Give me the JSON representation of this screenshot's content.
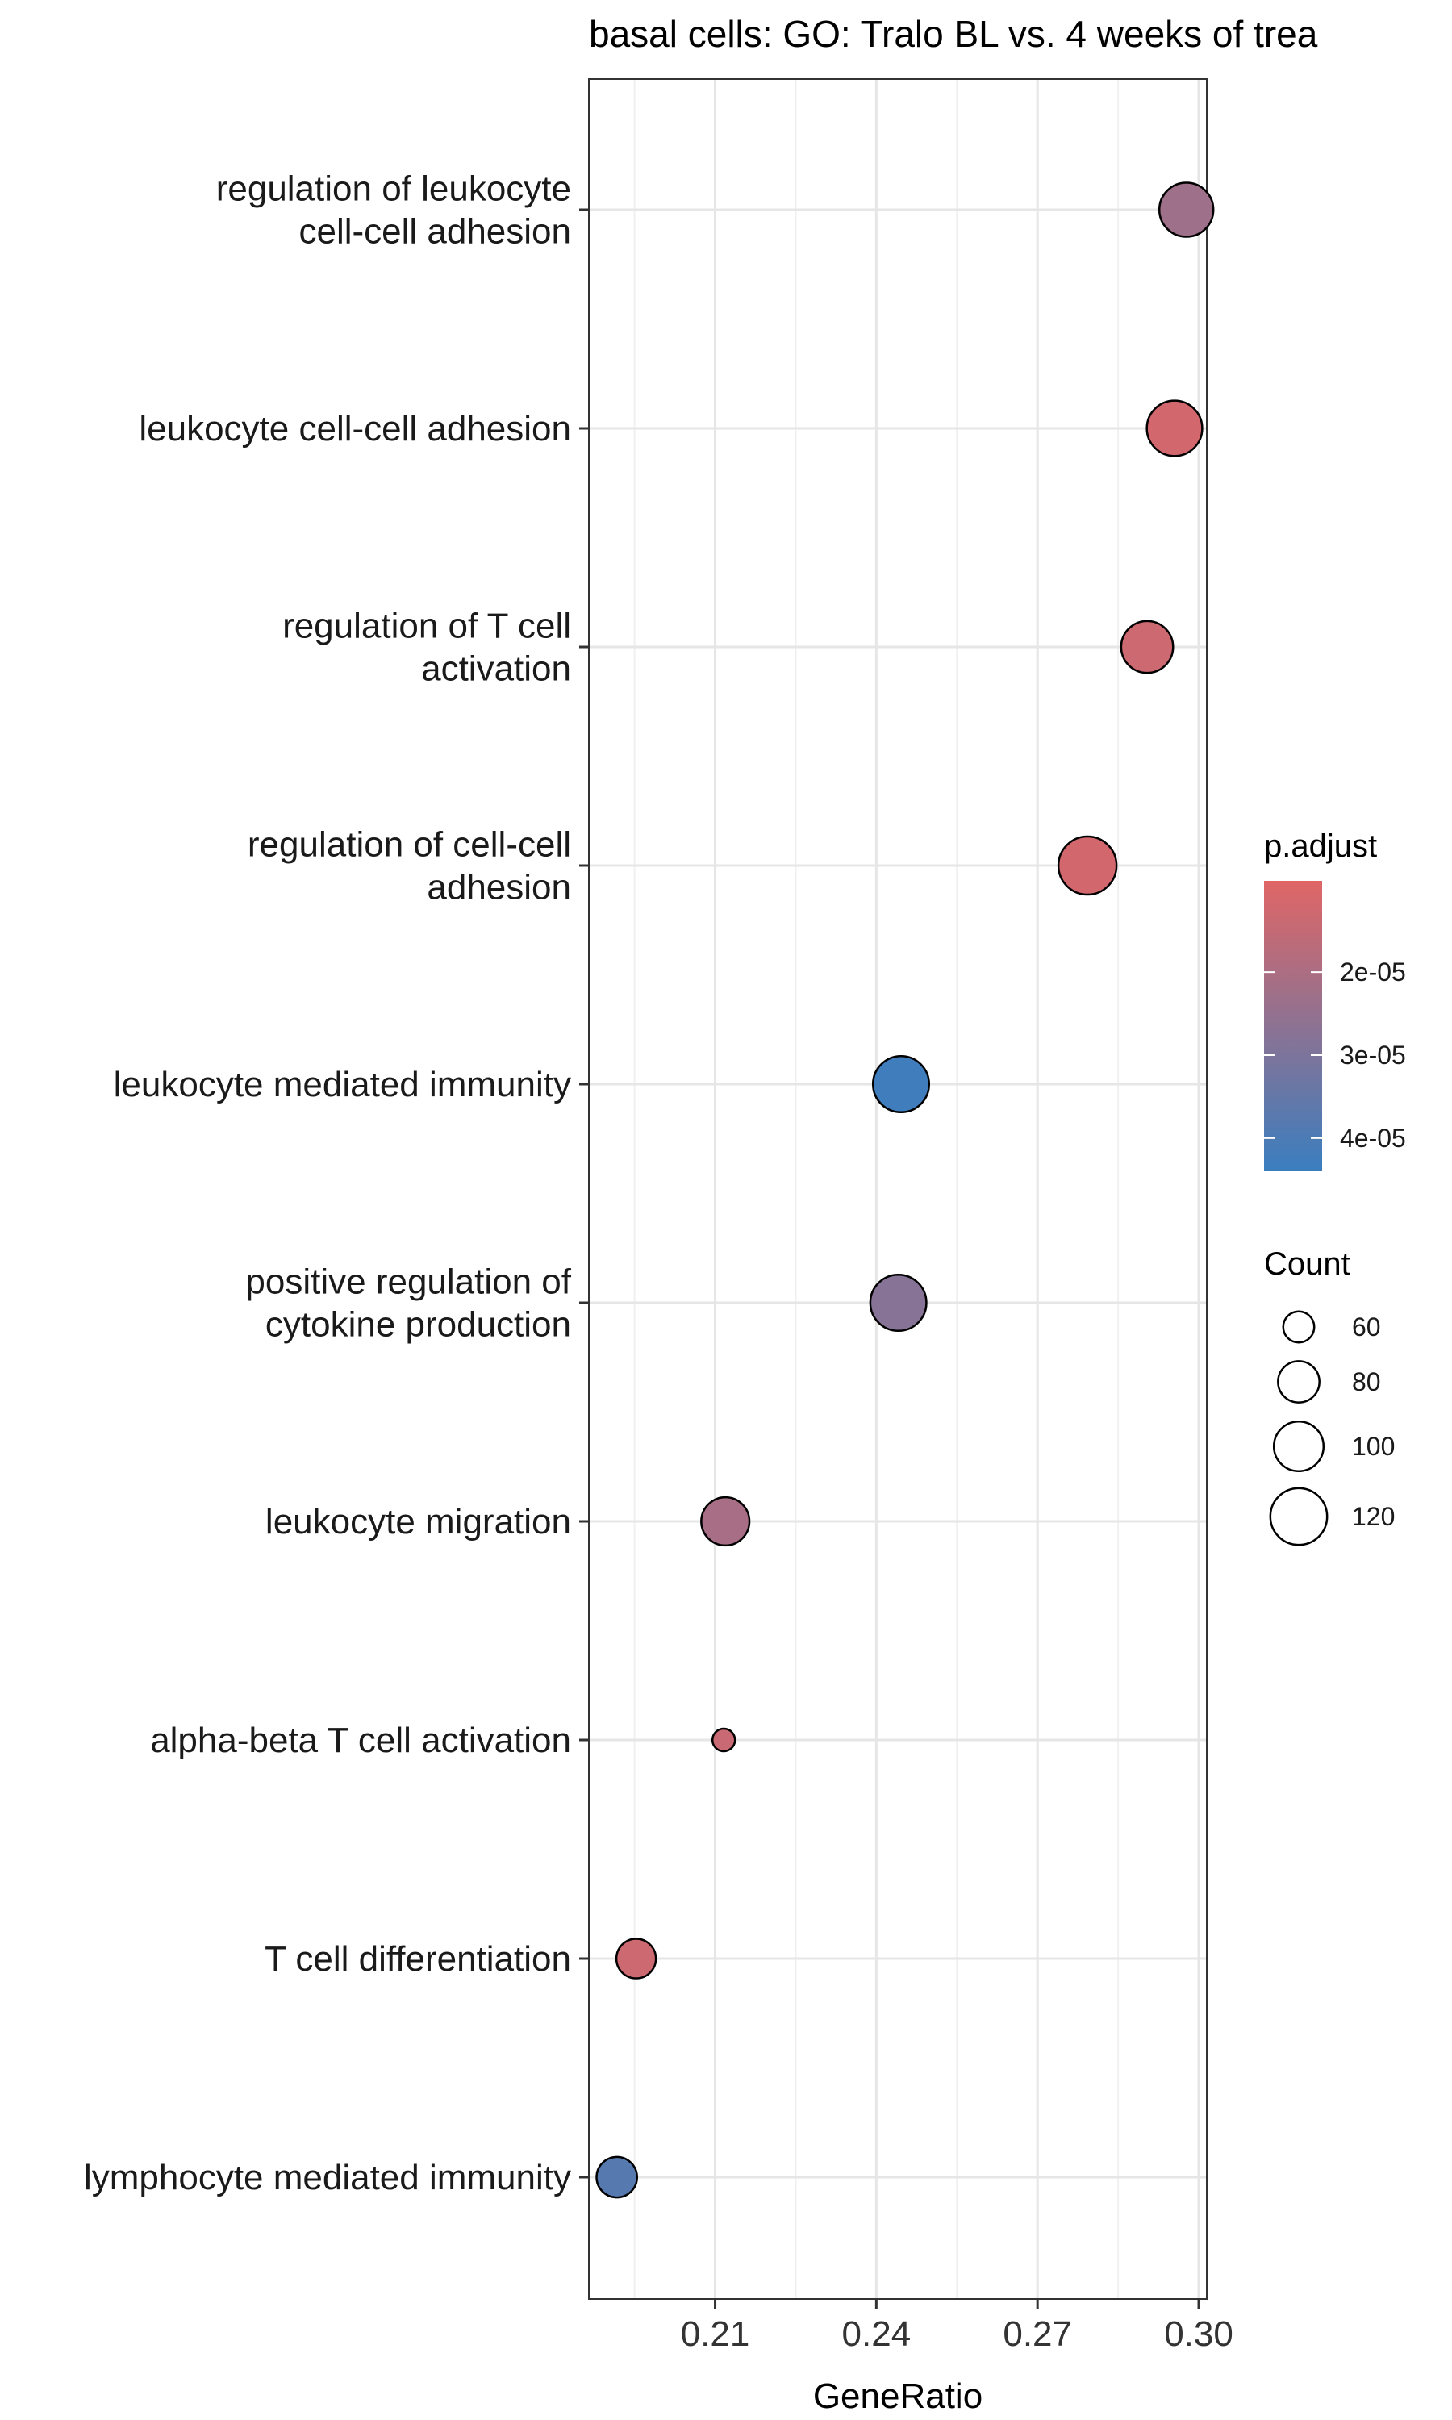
{
  "chart_data": {
    "type": "scatter",
    "title": "basal cells: GO: Tralo BL vs. 4 weeks of trea",
    "xlabel": "GeneRatio",
    "ylabel": "",
    "xlim": [
      0.1865,
      0.3015
    ],
    "x_ticks": [
      0.21,
      0.24,
      0.27,
      0.3
    ],
    "x_tick_labels": [
      "0.21",
      "0.24",
      "0.27",
      "0.30"
    ],
    "grid": true,
    "legend_position": "right",
    "categories": [
      "regulation of leukocyte cell-cell adhesion",
      "leukocyte cell-cell adhesion",
      "regulation of T cell activation",
      "regulation of cell-cell adhesion",
      "leukocyte mediated immunity",
      "positive regulation of cytokine production",
      "leukocyte migration",
      "alpha-beta T cell activation",
      "T cell differentiation",
      "lymphocyte mediated immunity"
    ],
    "category_labels": [
      [
        "regulation of leukocyte",
        "cell-cell adhesion"
      ],
      [
        "leukocyte cell-cell adhesion"
      ],
      [
        "regulation of T cell",
        "activation"
      ],
      [
        "regulation of cell-cell",
        "adhesion"
      ],
      [
        "leukocyte mediated immunity"
      ],
      [
        "positive regulation of",
        "cytokine production"
      ],
      [
        "leukocyte migration"
      ],
      [
        "alpha-beta T cell activation"
      ],
      [
        "T cell differentiation"
      ],
      [
        "lymphocyte mediated immunity"
      ]
    ],
    "points": [
      {
        "category": "regulation of leukocyte cell-cell adhesion",
        "x": 0.2977,
        "count": 112,
        "p_adjust": 2.3e-05
      },
      {
        "category": "leukocyte cell-cell adhesion",
        "x": 0.2955,
        "count": 116,
        "p_adjust": 1.2e-05
      },
      {
        "category": "regulation of T cell activation",
        "x": 0.2904,
        "count": 106,
        "p_adjust": 1.3e-05
      },
      {
        "category": "regulation of cell-cell adhesion",
        "x": 0.2793,
        "count": 124,
        "p_adjust": 1.2e-05
      },
      {
        "category": "leukocyte mediated immunity",
        "x": 0.2446,
        "count": 118,
        "p_adjust": 4.3e-05
      },
      {
        "category": "positive regulation of cytokine production",
        "x": 0.2441,
        "count": 118,
        "p_adjust": 2.8e-05
      },
      {
        "category": "leukocyte migration",
        "x": 0.2119,
        "count": 96,
        "p_adjust": 2.1e-05
      },
      {
        "category": "alpha-beta T cell activation",
        "x": 0.2116,
        "count": 48,
        "p_adjust": 1.4e-05
      },
      {
        "category": "T cell differentiation",
        "x": 0.1953,
        "count": 76,
        "p_adjust": 1.3e-05
      },
      {
        "category": "lymphocyte mediated immunity",
        "x": 0.1917,
        "count": 78,
        "p_adjust": 3.8e-05
      }
    ],
    "color_legend": {
      "title": "p.adjust",
      "range": [
        9e-06,
        4.4e-05
      ],
      "ticks": [
        2e-05,
        3e-05,
        4e-05
      ],
      "tick_labels": [
        "2e-05",
        "3e-05",
        "4e-05"
      ],
      "low_color": "#e06666",
      "high_color": "#3a7ebf"
    },
    "size_legend": {
      "title": "Count",
      "values": [
        60,
        80,
        100,
        120
      ],
      "labels": [
        "60",
        "80",
        "100",
        "120"
      ],
      "count_range": [
        48,
        124
      ]
    }
  }
}
